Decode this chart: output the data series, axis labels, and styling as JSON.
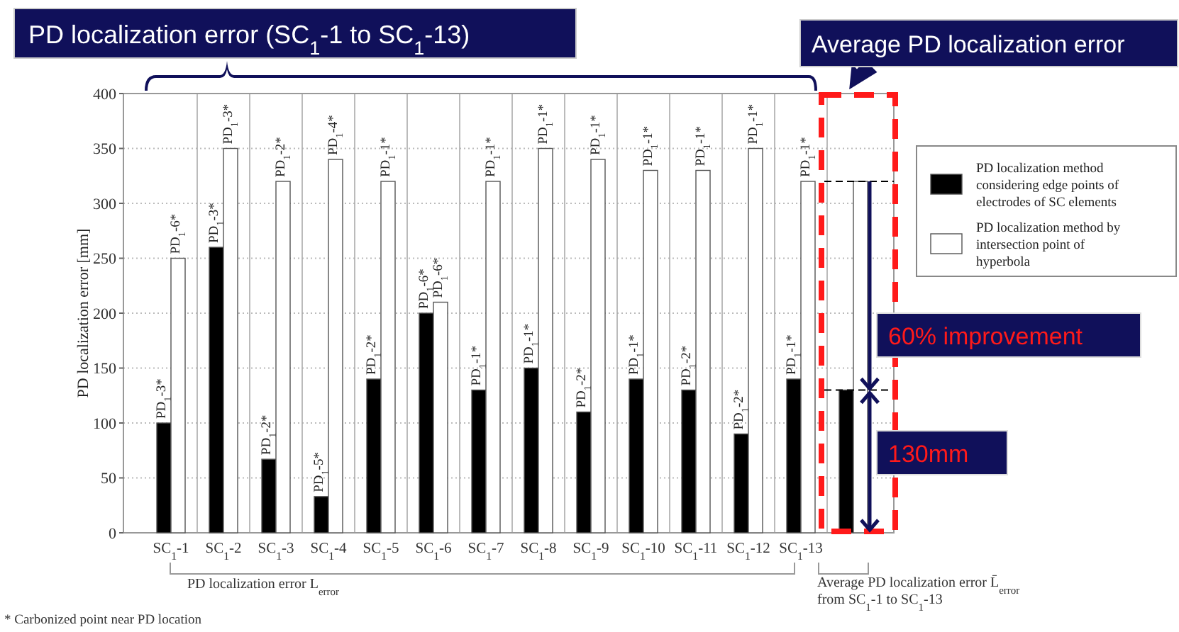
{
  "chart_data": {
    "type": "bar",
    "ylabel": "PD localization error [mm]",
    "categories": [
      "SC$_{1}$-1",
      "SC$_{1}$-2",
      "SC$_{1}$-3",
      "SC$_{1}$-4",
      "SC$_{1}$-5",
      "SC$_{1}$-6",
      "SC$_{1}$-7",
      "SC$_{1}$-8",
      "SC$_{1}$-9",
      "SC$_{1}$-10",
      "SC$_{1}$-11",
      "SC$_{1}$-12",
      "SC$_{1}$-13",
      null
    ],
    "series": [
      {
        "name": "PD  localization method considering edge points of electrodes of SC elements",
        "color": "#000000",
        "values": [
          100,
          260,
          67,
          33,
          140,
          200,
          130,
          150,
          110,
          140,
          130,
          90,
          140,
          130
        ],
        "value_labels": [
          "PD$_{1}$-3*",
          "PD$_{1}$-3*",
          "PD$_{1}$-2*",
          "PD$_{1}$-5*",
          "PD$_{1}$-2*",
          "PD$_{1}$-6*",
          "PD$_{1}$-1*",
          "PD$_{1}$-1*",
          "PD$_{1}$-2*",
          "PD$_{1}$-1*",
          "PD$_{1}$-2*",
          "PD$_{1}$-2*",
          "PD$_{1}$-1*",
          null
        ]
      },
      {
        "name": "PD  localization method by intersection point of hyperbola",
        "color": "#ffffff",
        "values": [
          250,
          350,
          320,
          340,
          320,
          210,
          320,
          350,
          340,
          330,
          330,
          350,
          320,
          320
        ],
        "value_labels": [
          "PD$_{1}$-6*",
          "PD$_{1}$-3*",
          "PD$_{1}$-2*",
          "PD$_{1}$-4*",
          "PD$_{1}$-1*",
          "PD$_{1}$-6*",
          "PD$_{1}$-1*",
          "PD$_{1}$-1*",
          "PD$_{1}$-1*",
          "PD$_{1}$-1*",
          "PD$_{1}$-1*",
          "PD$_{1}$-1*",
          "PD$_{1}$-1*",
          null
        ]
      }
    ],
    "ylim": [
      0,
      400
    ],
    "yticks": [
      0,
      50,
      100,
      150,
      200,
      250,
      300,
      350,
      400
    ],
    "grid": true,
    "legend": "right",
    "ref_lines": [
      {
        "axis": "y",
        "value": 320,
        "line_style": "dashed",
        "color": "#000000"
      },
      {
        "axis": "y",
        "value": 130,
        "line_style": "dashed",
        "color": "#000000"
      }
    ],
    "annotations": [
      "PD localization error (SC$_{1}$-1 to SC$_{1}$-13)",
      "Average PD localization error",
      "60% improvement",
      "130mm",
      "PD localization error L$_{error}$",
      "Average PD localization error L̄$_{error}$ from SC$_{1}$-1 to SC$_{1}$-13",
      "* Carbonized point near PD location"
    ]
  }
}
